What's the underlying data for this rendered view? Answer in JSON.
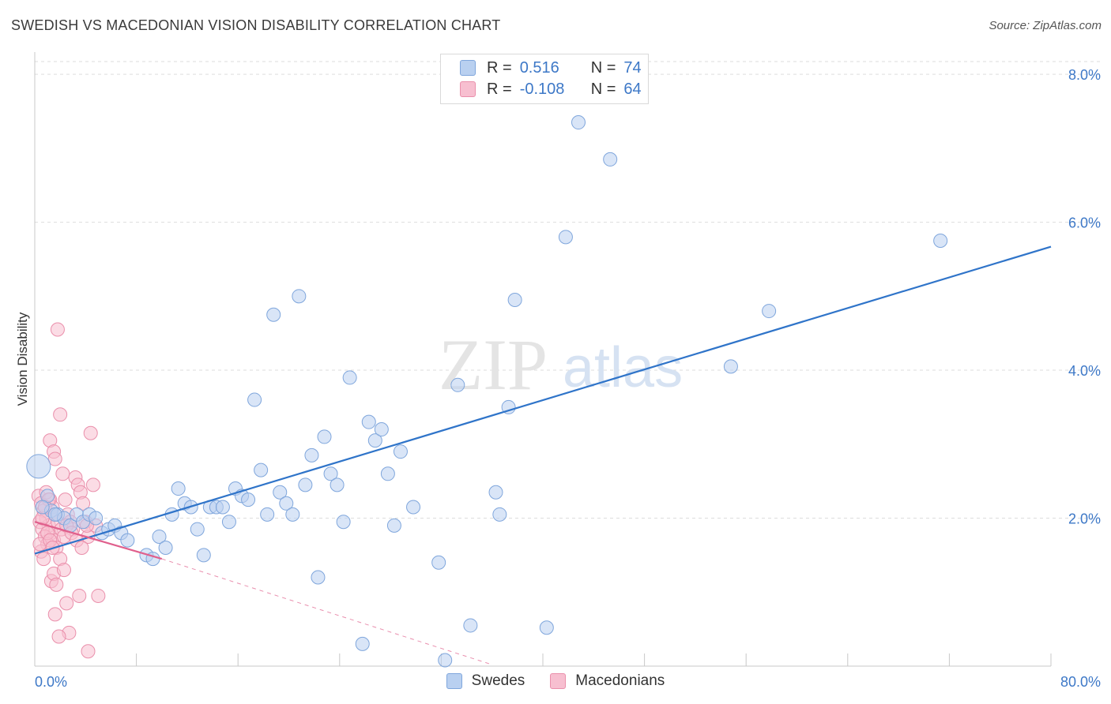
{
  "title": "SWEDISH VS MACEDONIAN VISION DISABILITY CORRELATION CHART",
  "source": "Source: ZipAtlas.com",
  "watermark": {
    "zip": "ZIP",
    "atlas": "atlas"
  },
  "legend": {
    "rows": [
      {
        "r_label": "R =",
        "r_value": "0.516",
        "n_label": "N =",
        "n_value": "74"
      },
      {
        "r_label": "R =",
        "r_value": "-0.108",
        "n_label": "N =",
        "n_value": "64"
      }
    ],
    "bottom": [
      "Swedes",
      "Macedonians"
    ]
  },
  "colors": {
    "swedes_fill": "#b9d0f0",
    "swedes_stroke": "#7fa6dc",
    "swedes_line": "#2f74c9",
    "macedonians_fill": "#f7bfd0",
    "macedonians_stroke": "#ea8fab",
    "macedonians_line": "#e05f8c",
    "tick_label": "#3d78c7",
    "grid": "#dddddd"
  },
  "chart_data": {
    "type": "scatter",
    "title": "SWEDISH VS MACEDONIAN VISION DISABILITY CORRELATION CHART",
    "xlabel": "",
    "ylabel": "Vision Disability",
    "xlim": [
      0,
      80
    ],
    "ylim": [
      0,
      8.3
    ],
    "x_tick_labels": [
      "0.0%",
      "80.0%"
    ],
    "y_ticks": [
      2,
      4,
      6,
      8
    ],
    "y_tick_labels": [
      "2.0%",
      "4.0%",
      "6.0%",
      "8.0%"
    ],
    "grid": true,
    "legend_position": "top-center",
    "series": [
      {
        "name": "Swedes",
        "r": 0.516,
        "n": 74,
        "trend": {
          "x": [
            0,
            80
          ],
          "y": [
            1.52,
            5.67
          ]
        },
        "points": [
          [
            0.3,
            2.7
          ],
          [
            1.0,
            2.3
          ],
          [
            1.3,
            2.1
          ],
          [
            1.8,
            2.05
          ],
          [
            2.3,
            2.0
          ],
          [
            2.8,
            1.9
          ],
          [
            3.3,
            2.05
          ],
          [
            3.8,
            1.95
          ],
          [
            4.3,
            2.05
          ],
          [
            4.8,
            2.0
          ],
          [
            5.3,
            1.8
          ],
          [
            5.8,
            1.85
          ],
          [
            6.3,
            1.9
          ],
          [
            6.8,
            1.8
          ],
          [
            7.3,
            1.7
          ],
          [
            8.8,
            1.5
          ],
          [
            9.3,
            1.45
          ],
          [
            9.8,
            1.75
          ],
          [
            10.3,
            1.6
          ],
          [
            10.8,
            2.05
          ],
          [
            11.3,
            2.4
          ],
          [
            11.8,
            2.2
          ],
          [
            12.3,
            2.15
          ],
          [
            12.8,
            1.85
          ],
          [
            13.3,
            1.5
          ],
          [
            13.8,
            2.15
          ],
          [
            14.3,
            2.15
          ],
          [
            14.8,
            2.15
          ],
          [
            15.3,
            1.95
          ],
          [
            15.8,
            2.4
          ],
          [
            16.3,
            2.3
          ],
          [
            16.8,
            2.25
          ],
          [
            17.3,
            3.6
          ],
          [
            17.8,
            2.65
          ],
          [
            18.3,
            2.05
          ],
          [
            18.8,
            4.75
          ],
          [
            19.3,
            2.35
          ],
          [
            19.8,
            2.2
          ],
          [
            20.3,
            2.05
          ],
          [
            20.8,
            5.0
          ],
          [
            21.3,
            2.45
          ],
          [
            21.8,
            2.85
          ],
          [
            22.3,
            1.2
          ],
          [
            22.8,
            3.1
          ],
          [
            23.3,
            2.6
          ],
          [
            23.8,
            2.45
          ],
          [
            24.3,
            1.95
          ],
          [
            24.8,
            3.9
          ],
          [
            25.8,
            0.3
          ],
          [
            26.3,
            3.3
          ],
          [
            26.8,
            3.05
          ],
          [
            27.3,
            3.2
          ],
          [
            27.8,
            2.6
          ],
          [
            28.3,
            1.9
          ],
          [
            28.8,
            2.9
          ],
          [
            29.8,
            2.15
          ],
          [
            31.8,
            1.4
          ],
          [
            32.3,
            0.08
          ],
          [
            33.3,
            3.8
          ],
          [
            34.3,
            0.55
          ],
          [
            36.3,
            2.35
          ],
          [
            36.6,
            2.05
          ],
          [
            37.3,
            3.5
          ],
          [
            37.8,
            4.95
          ],
          [
            38.3,
            7.8
          ],
          [
            40.3,
            0.52
          ],
          [
            41.8,
            5.8
          ],
          [
            42.8,
            7.35
          ],
          [
            45.3,
            6.85
          ],
          [
            54.8,
            4.05
          ],
          [
            57.8,
            4.8
          ],
          [
            71.3,
            5.75
          ],
          [
            0.6,
            2.15
          ],
          [
            1.6,
            2.05
          ]
        ]
      },
      {
        "name": "Macedonians",
        "r": -0.108,
        "n": 64,
        "trend": {
          "x": [
            0,
            10
          ],
          "y": [
            1.95,
            1.45
          ]
        },
        "trend_extended": {
          "x": [
            10,
            36
          ],
          "y": [
            1.45,
            0.02
          ]
        },
        "points": [
          [
            0.3,
            2.3
          ],
          [
            0.5,
            2.2
          ],
          [
            0.7,
            2.1
          ],
          [
            0.9,
            2.0
          ],
          [
            1.1,
            1.9
          ],
          [
            1.3,
            1.8
          ],
          [
            1.5,
            1.7
          ],
          [
            1.7,
            1.6
          ],
          [
            0.4,
            1.95
          ],
          [
            0.6,
            1.85
          ],
          [
            0.8,
            1.75
          ],
          [
            1.0,
            1.65
          ],
          [
            1.2,
            2.25
          ],
          [
            1.4,
            2.15
          ],
          [
            1.6,
            2.05
          ],
          [
            1.8,
            1.95
          ],
          [
            0.5,
            1.55
          ],
          [
            0.7,
            1.45
          ],
          [
            0.9,
            2.35
          ],
          [
            1.1,
            2.25
          ],
          [
            1.2,
            3.05
          ],
          [
            1.5,
            2.9
          ],
          [
            1.6,
            2.8
          ],
          [
            1.8,
            4.55
          ],
          [
            2.0,
            3.4
          ],
          [
            2.2,
            2.6
          ],
          [
            2.4,
            2.25
          ],
          [
            2.6,
            2.05
          ],
          [
            2.8,
            1.95
          ],
          [
            3.0,
            1.85
          ],
          [
            3.2,
            2.55
          ],
          [
            3.4,
            2.45
          ],
          [
            3.6,
            2.35
          ],
          [
            3.8,
            2.2
          ],
          [
            4.0,
            1.95
          ],
          [
            4.2,
            1.75
          ],
          [
            4.4,
            3.15
          ],
          [
            4.6,
            2.45
          ],
          [
            4.8,
            1.9
          ],
          [
            1.3,
            1.15
          ],
          [
            1.5,
            1.25
          ],
          [
            1.7,
            1.1
          ],
          [
            2.0,
            1.45
          ],
          [
            2.3,
            1.3
          ],
          [
            2.5,
            0.85
          ],
          [
            2.7,
            0.45
          ],
          [
            1.6,
            0.7
          ],
          [
            1.9,
            0.4
          ],
          [
            3.5,
            0.95
          ],
          [
            4.2,
            0.2
          ],
          [
            5.0,
            0.95
          ],
          [
            0.4,
            1.65
          ],
          [
            0.6,
            2.0
          ],
          [
            0.8,
            2.15
          ],
          [
            1.0,
            1.8
          ],
          [
            1.2,
            1.7
          ],
          [
            1.4,
            1.6
          ],
          [
            2.1,
            1.85
          ],
          [
            2.3,
            1.75
          ],
          [
            2.5,
            1.9
          ],
          [
            2.9,
            1.8
          ],
          [
            3.3,
            1.7
          ],
          [
            3.7,
            1.6
          ],
          [
            4.1,
            1.9
          ]
        ]
      }
    ]
  }
}
